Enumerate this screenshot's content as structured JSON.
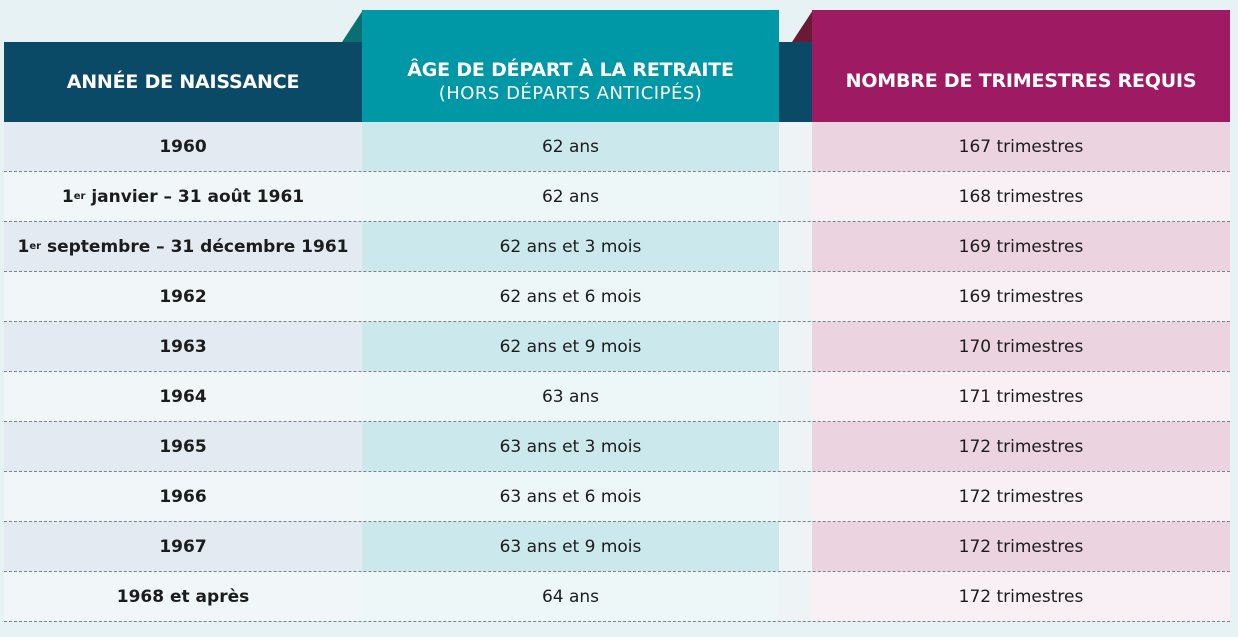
{
  "table": {
    "headers": {
      "col1": "ANNÉE DE NAISSANCE",
      "col2_title": "ÂGE DE DÉPART À LA RETRAITE",
      "col2_sub": "(HORS DÉPARTS ANTICIPÉS)",
      "col3": "NOMBRE DE TRIMESTRES REQUIS"
    },
    "rows": [
      {
        "year": "1960",
        "age": "62 ans",
        "quarters": "167 trimestres"
      },
      {
        "year_pre": "1",
        "year_sup": "er",
        "year_post": " janvier – 31 août 1961",
        "age": "62 ans",
        "quarters": "168 trimestres"
      },
      {
        "year_pre": "1",
        "year_sup": "er",
        "year_post": " septembre – 31 décembre 1961",
        "age": "62 ans et 3 mois",
        "quarters": "169 trimestres"
      },
      {
        "year": "1962",
        "age": "62 ans et 6 mois",
        "quarters": "169 trimestres"
      },
      {
        "year": "1963",
        "age": "62 ans et 9 mois",
        "quarters": "170 trimestres"
      },
      {
        "year": "1964",
        "age": "63 ans",
        "quarters": "171 trimestres"
      },
      {
        "year": "1965",
        "age": "63 ans et 3 mois",
        "quarters": "172 trimestres"
      },
      {
        "year": "1966",
        "age": "63 ans et 6 mois",
        "quarters": "172 trimestres"
      },
      {
        "year": "1967",
        "age": "63 ans et 9 mois",
        "quarters": "172 trimestres"
      },
      {
        "year": "1968 et après",
        "age": "64 ans",
        "quarters": "172 trimestres"
      }
    ]
  },
  "colors": {
    "navy": "#0a4a66",
    "teal": "#0097a7",
    "teal_dark": "#0b6f6f",
    "magenta": "#9e1b63",
    "magenta_dark": "#6a1a35",
    "col1_odd": "#e3eaf1",
    "col1_even": "#f1f6f9",
    "col2_odd": "#cbe9ec",
    "col2_even": "#eef7f8",
    "col3_odd": "#ecd3e0",
    "col3_even": "#f8f0f4",
    "gap": "#eef3f6"
  }
}
